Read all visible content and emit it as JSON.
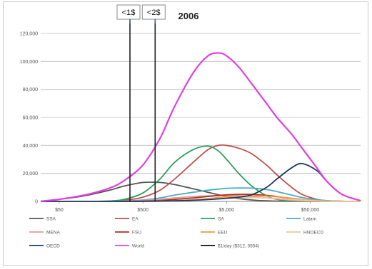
{
  "chart_data": {
    "type": "line",
    "title": "2006",
    "x_scale": "log",
    "x_tick_labels": [
      "$50",
      "$500",
      "$5,000",
      "$50,000"
    ],
    "y_tick_labels": [
      "0",
      "20,000",
      "40,000",
      "60,000",
      "80,000",
      "100,000",
      "120,000"
    ],
    "ylim": [
      0,
      120000
    ],
    "grid": true,
    "legend_position": "bottom",
    "x": [
      30,
      50,
      100,
      200,
      300,
      500,
      800,
      1200,
      2000,
      3000,
      4000,
      5000,
      7000,
      10000,
      15000,
      20000,
      30000,
      40000,
      60000,
      80000,
      120000,
      200000
    ],
    "series": [
      {
        "name": "SSA",
        "color": "#555555",
        "values": [
          100,
          1500,
          4000,
          8000,
          11000,
          13500,
          13500,
          12000,
          9000,
          6500,
          4800,
          3500,
          2000,
          1000,
          400,
          200,
          80,
          40,
          10,
          5,
          0,
          0
        ]
      },
      {
        "name": "EA",
        "color": "#c0504d",
        "values": [
          0,
          0,
          0,
          200,
          800,
          3000,
          8000,
          16000,
          28000,
          37000,
          40000,
          40000,
          38000,
          34000,
          26000,
          19000,
          10000,
          5000,
          1500,
          500,
          100,
          0
        ]
      },
      {
        "name": "SA",
        "color": "#2e9e5b",
        "values": [
          0,
          0,
          0,
          300,
          1500,
          6000,
          16000,
          28000,
          37000,
          39500,
          36000,
          30000,
          20000,
          11000,
          4000,
          1500,
          300,
          100,
          0,
          0,
          0,
          0
        ]
      },
      {
        "name": "Latam",
        "color": "#4bacc6",
        "values": [
          0,
          0,
          0,
          100,
          300,
          1000,
          2500,
          4500,
          6500,
          8000,
          8800,
          9300,
          9600,
          9500,
          8500,
          7000,
          4500,
          2800,
          1200,
          500,
          100,
          0
        ]
      },
      {
        "name": "MENA",
        "color": "#d9a0a0",
        "values": [
          0,
          0,
          0,
          50,
          200,
          700,
          1500,
          2500,
          3500,
          4000,
          4200,
          4200,
          4000,
          3500,
          2500,
          1800,
          800,
          400,
          100,
          0,
          0,
          0
        ]
      },
      {
        "name": "FSU",
        "color": "#b03020",
        "values": [
          0,
          0,
          0,
          0,
          50,
          200,
          600,
          1400,
          2500,
          3500,
          4200,
          4700,
          5000,
          5000,
          4300,
          3500,
          2000,
          1200,
          400,
          100,
          0,
          0
        ]
      },
      {
        "name": "EEU",
        "color": "#f79646",
        "values": [
          0,
          0,
          0,
          0,
          0,
          50,
          200,
          500,
          1200,
          2000,
          2700,
          3200,
          3800,
          4000,
          3800,
          3300,
          2300,
          1500,
          600,
          200,
          0,
          0
        ]
      },
      {
        "name": "HNOECD",
        "color": "#e8c9a0",
        "values": [
          0,
          0,
          0,
          0,
          0,
          50,
          150,
          400,
          900,
          1500,
          2000,
          2300,
          2600,
          2700,
          2500,
          2100,
          1400,
          900,
          300,
          100,
          0,
          0
        ]
      },
      {
        "name": "OECD",
        "color": "#1f3864",
        "values": [
          0,
          0,
          0,
          0,
          0,
          100,
          200,
          400,
          800,
          1300,
          1800,
          2200,
          3000,
          4800,
          10000,
          16000,
          24000,
          27000,
          22000,
          14000,
          5000,
          500
        ]
      },
      {
        "name": "World",
        "color": "#e040e0",
        "values": [
          100,
          1500,
          4500,
          9500,
          15000,
          26000,
          45000,
          68000,
          92000,
          104000,
          106000,
          104000,
          96000,
          84000,
          70000,
          60000,
          48000,
          38000,
          24000,
          14000,
          5000,
          500
        ]
      }
    ],
    "markers": [
      {
        "label": "<1$",
        "x": 350
      },
      {
        "label": "<2$",
        "x": 700
      }
    ],
    "marker_legend": {
      "label": "$1/day ($312, 3554)",
      "color": "#111111"
    }
  }
}
